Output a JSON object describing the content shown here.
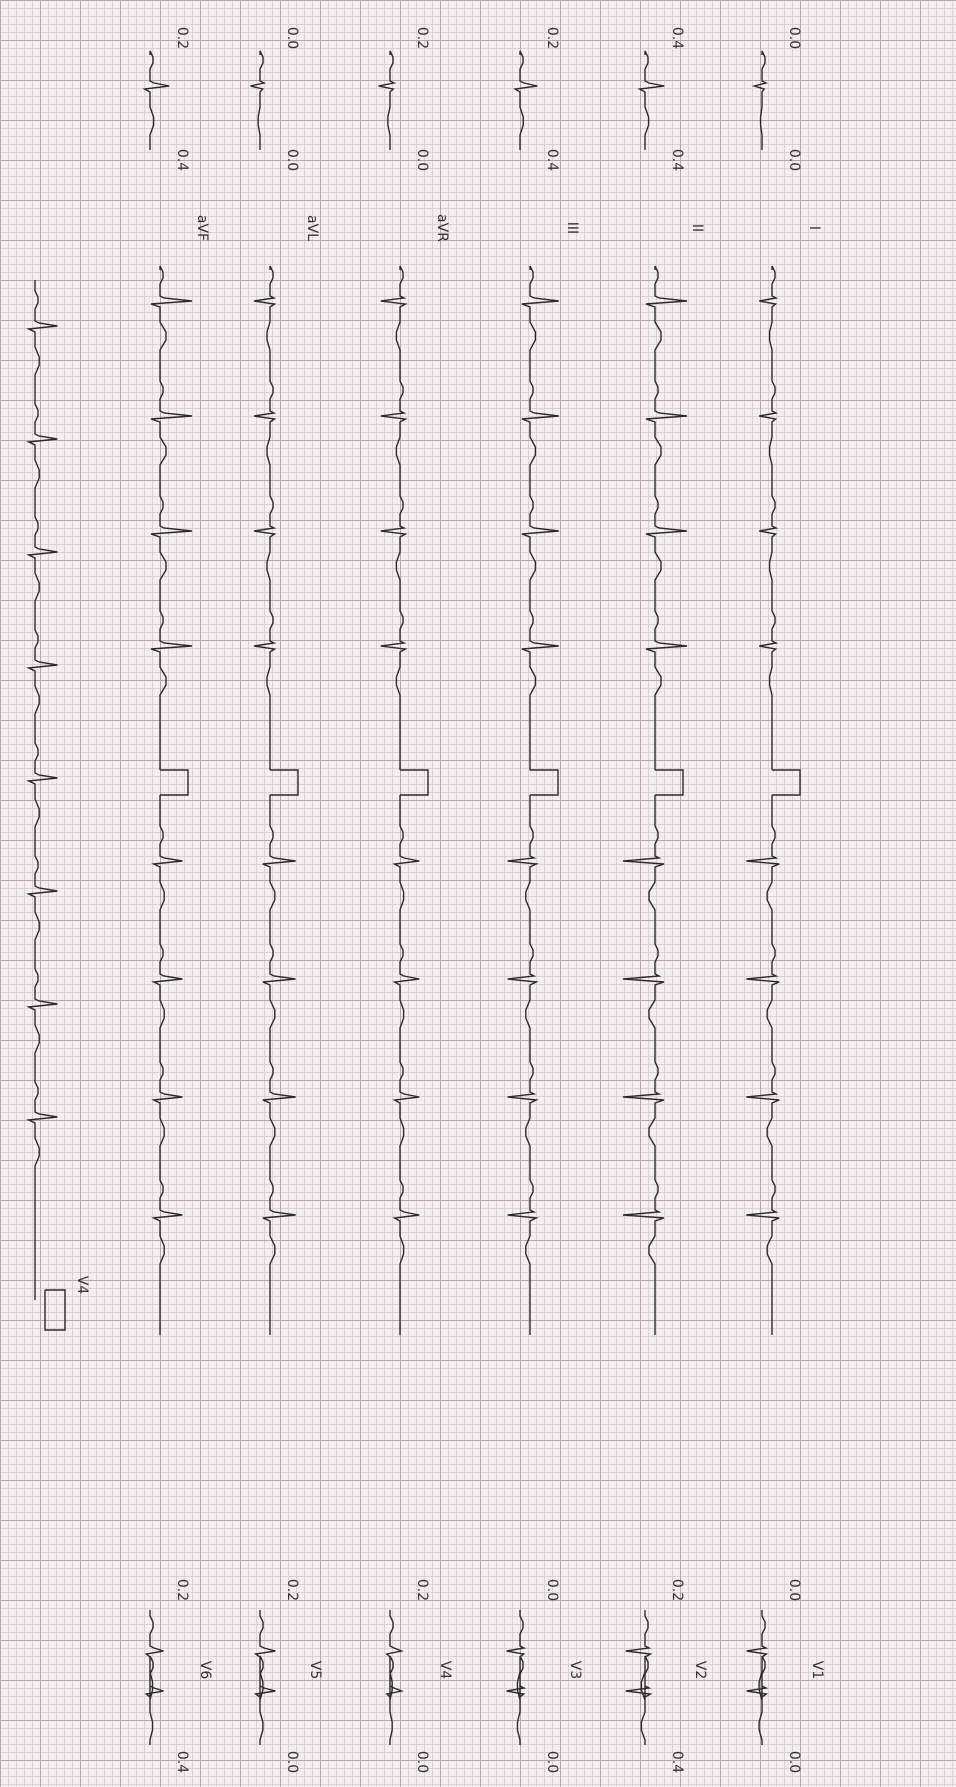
{
  "limb_leads": [
    {
      "label": "I",
      "start": "0.0",
      "end": "0.0"
    },
    {
      "label": "II",
      "start": "0.4",
      "end": "0.4"
    },
    {
      "label": "III",
      "start": "0.2",
      "end": "0.4"
    },
    {
      "label": "aVR",
      "start": "0.2",
      "end": "0.0"
    },
    {
      "label": "aVL",
      "start": "0.0",
      "end": "0.0"
    },
    {
      "label": "aVF",
      "start": "0.2",
      "end": "0.4"
    }
  ],
  "chest_leads": [
    {
      "label": "V1",
      "start": "0.0",
      "end": "0.0"
    },
    {
      "label": "V2",
      "start": "0.2",
      "end": "0.4"
    },
    {
      "label": "V3",
      "start": "0.0",
      "end": "0.0"
    },
    {
      "label": "V4",
      "start": "0.2",
      "end": "0.0"
    },
    {
      "label": "V5",
      "start": "0.2",
      "end": "0.0"
    },
    {
      "label": "V6",
      "start": "0.2",
      "end": "0.4"
    }
  ],
  "rhythm_lead": {
    "label": "V4"
  }
}
